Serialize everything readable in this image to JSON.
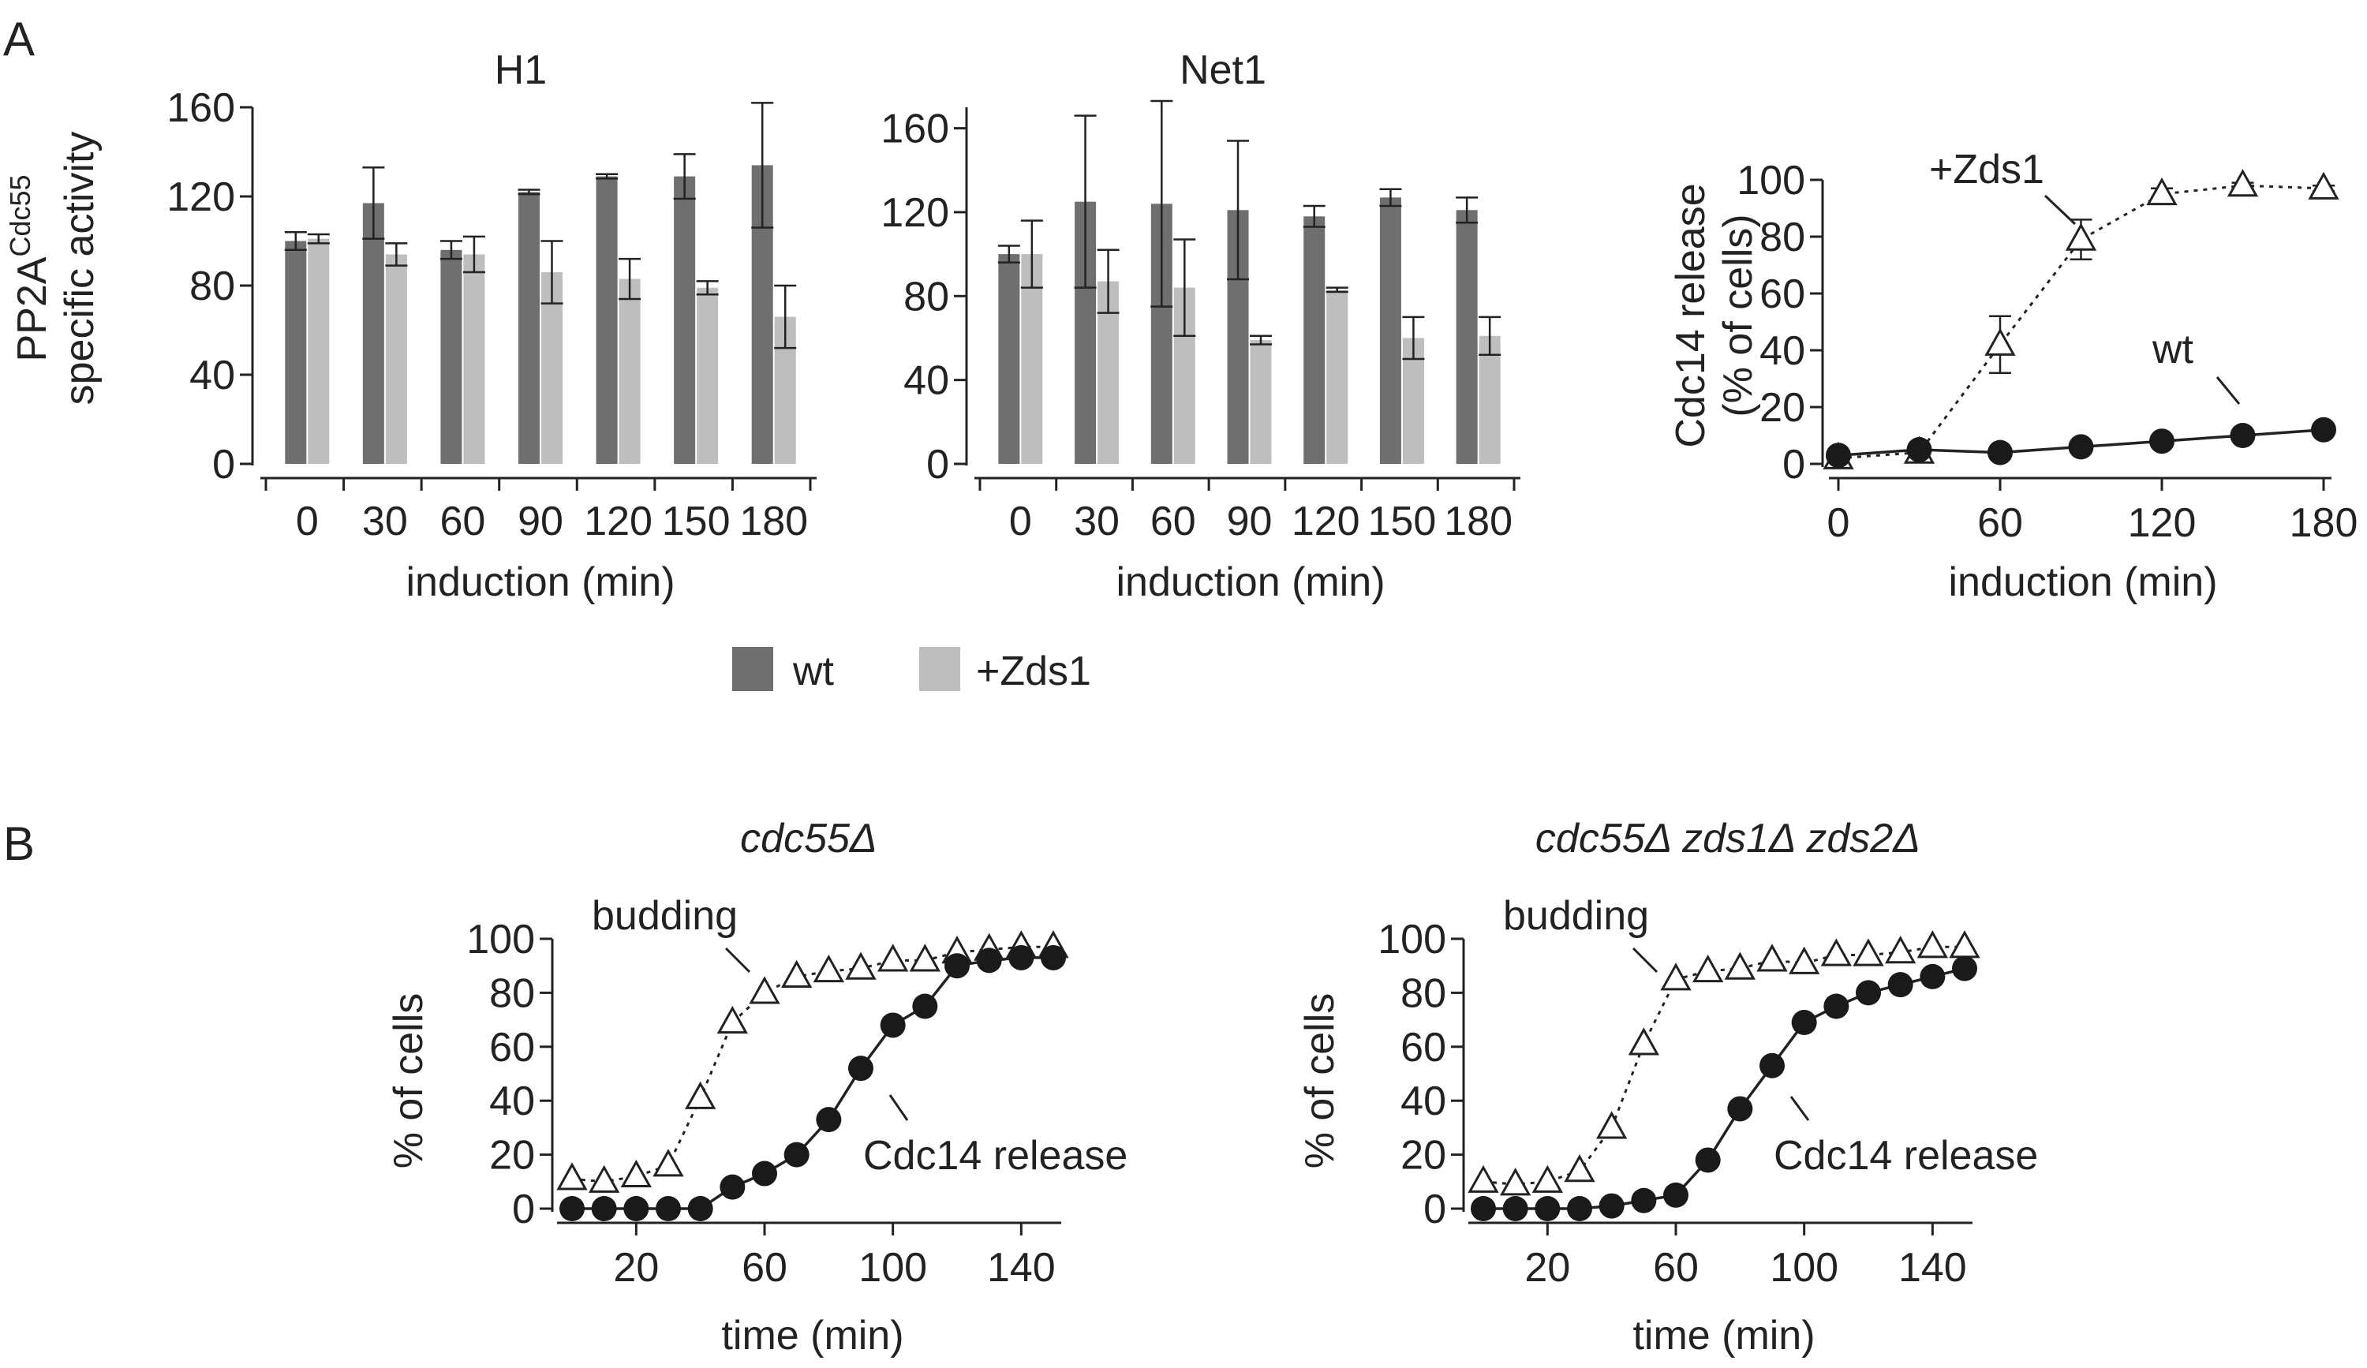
{
  "panel_labels": {
    "a": "A",
    "b": "B"
  },
  "colors": {
    "wt": "#6f6f6f",
    "zds1": "#bebebe",
    "axis": "#222222",
    "marker_fill": "#1a1a1a"
  },
  "legend": {
    "items": [
      {
        "label": "wt",
        "color": "#6f6f6f"
      },
      {
        "label": "+Zds1",
        "color": "#bebebe"
      }
    ]
  },
  "annotations": {
    "c_zds1": "+Zds1",
    "c_wt": "wt",
    "d_budding": "budding",
    "d_cdc14": "Cdc14 release",
    "e_budding": "budding",
    "e_cdc14": "Cdc14 release"
  },
  "chart_data": [
    {
      "type": "bar",
      "title": "H1",
      "ylabel": "PP2ACdc55 specific activity",
      "ylabel_line1_base": "PP2A",
      "ylabel_line1_sup": "Cdc55",
      "ylabel_line2": "specific activity",
      "xlabel": "induction (min)",
      "categories": [
        "0",
        "30",
        "60",
        "90",
        "120",
        "150",
        "180"
      ],
      "ylim": [
        0,
        160
      ],
      "yticks": [
        0,
        40,
        80,
        120,
        160
      ],
      "series": [
        {
          "name": "wt",
          "values": [
            100,
            117,
            96,
            122,
            129,
            129,
            134
          ],
          "errors": [
            4,
            16,
            4,
            1,
            1,
            10,
            28
          ]
        },
        {
          "name": "+Zds1",
          "values": [
            101,
            94,
            94,
            86,
            83,
            79,
            66
          ],
          "errors": [
            2,
            5,
            8,
            14,
            9,
            3,
            14
          ]
        }
      ]
    },
    {
      "type": "bar",
      "title": "Net1",
      "xlabel": "induction (min)",
      "categories": [
        "0",
        "30",
        "60",
        "90",
        "120",
        "150",
        "180"
      ],
      "ylim": [
        0,
        170
      ],
      "yticks": [
        0,
        40,
        80,
        120,
        160
      ],
      "series": [
        {
          "name": "wt",
          "values": [
            100,
            125,
            124,
            121,
            118,
            127,
            121
          ],
          "errors": [
            4,
            41,
            49,
            33,
            5,
            4,
            6
          ]
        },
        {
          "name": "+Zds1",
          "values": [
            100,
            87,
            84,
            59,
            83,
            60,
            61
          ],
          "errors": [
            16,
            15,
            23,
            2,
            1,
            10,
            9
          ]
        }
      ]
    },
    {
      "type": "line",
      "ylabel": "Cdc14 release (% of cells)",
      "ylabel_line1": "Cdc14 release",
      "ylabel_line2": "(% of cells)",
      "xlabel": "induction (min)",
      "xlim": [
        0,
        180
      ],
      "xticks": [
        0,
        60,
        120,
        180
      ],
      "ylim": [
        0,
        100
      ],
      "yticks": [
        0,
        20,
        40,
        60,
        80,
        100
      ],
      "series": [
        {
          "name": "+Zds1",
          "marker": "open-triangle",
          "line": "dotted",
          "x": [
            0,
            30,
            60,
            90,
            120,
            150,
            180
          ],
          "y": [
            2,
            4,
            42,
            79,
            95,
            98,
            97
          ],
          "errors": [
            0,
            0,
            10,
            7,
            2,
            1,
            1
          ]
        },
        {
          "name": "wt",
          "marker": "filled-circle",
          "line": "solid",
          "x": [
            0,
            30,
            60,
            90,
            120,
            150,
            180
          ],
          "y": [
            3,
            5,
            4,
            6,
            8,
            10,
            12
          ],
          "errors": [
            0,
            0,
            0,
            0,
            0,
            0,
            0
          ]
        }
      ]
    },
    {
      "type": "line",
      "title": "cdc55Δ",
      "ylabel": "% of cells",
      "xlabel": "time (min)",
      "xlim": [
        0,
        150
      ],
      "xticks": [
        20,
        60,
        100,
        140
      ],
      "ylim": [
        0,
        100
      ],
      "yticks": [
        0,
        20,
        40,
        60,
        80,
        100
      ],
      "series": [
        {
          "name": "budding",
          "marker": "open-triangle",
          "line": "dotted",
          "x": [
            0,
            10,
            20,
            30,
            40,
            50,
            60,
            70,
            80,
            90,
            100,
            110,
            120,
            130,
            140,
            150
          ],
          "y": [
            11,
            10,
            12,
            16,
            41,
            69,
            80,
            86,
            88,
            89,
            92,
            92,
            95,
            96,
            97,
            97
          ]
        },
        {
          "name": "Cdc14 release",
          "marker": "filled-circle",
          "line": "solid",
          "x": [
            0,
            10,
            20,
            30,
            40,
            50,
            60,
            70,
            80,
            90,
            100,
            110,
            120,
            130,
            140,
            150
          ],
          "y": [
            0,
            0,
            0,
            0,
            0,
            8,
            13,
            20,
            33,
            52,
            68,
            75,
            90,
            92,
            93,
            93
          ]
        }
      ]
    },
    {
      "type": "line",
      "title": "cdc55Δ zds1Δ zds2Δ",
      "ylabel": "% of cells",
      "xlabel": "time (min)",
      "xlim": [
        0,
        150
      ],
      "xticks": [
        20,
        60,
        100,
        140
      ],
      "ylim": [
        0,
        100
      ],
      "yticks": [
        0,
        20,
        40,
        60,
        80,
        100
      ],
      "series": [
        {
          "name": "budding",
          "marker": "open-triangle",
          "line": "dotted",
          "x": [
            0,
            10,
            20,
            30,
            40,
            50,
            60,
            70,
            80,
            90,
            100,
            110,
            120,
            130,
            140,
            150
          ],
          "y": [
            10,
            9,
            10,
            14,
            30,
            61,
            85,
            88,
            89,
            92,
            91,
            94,
            94,
            95,
            97,
            97
          ]
        },
        {
          "name": "Cdc14 release",
          "marker": "filled-circle",
          "line": "solid",
          "x": [
            0,
            10,
            20,
            30,
            40,
            50,
            60,
            70,
            80,
            90,
            100,
            110,
            120,
            130,
            140,
            150
          ],
          "y": [
            0,
            0,
            0,
            0,
            1,
            3,
            5,
            18,
            37,
            53,
            69,
            75,
            80,
            83,
            86,
            89
          ]
        }
      ]
    }
  ]
}
